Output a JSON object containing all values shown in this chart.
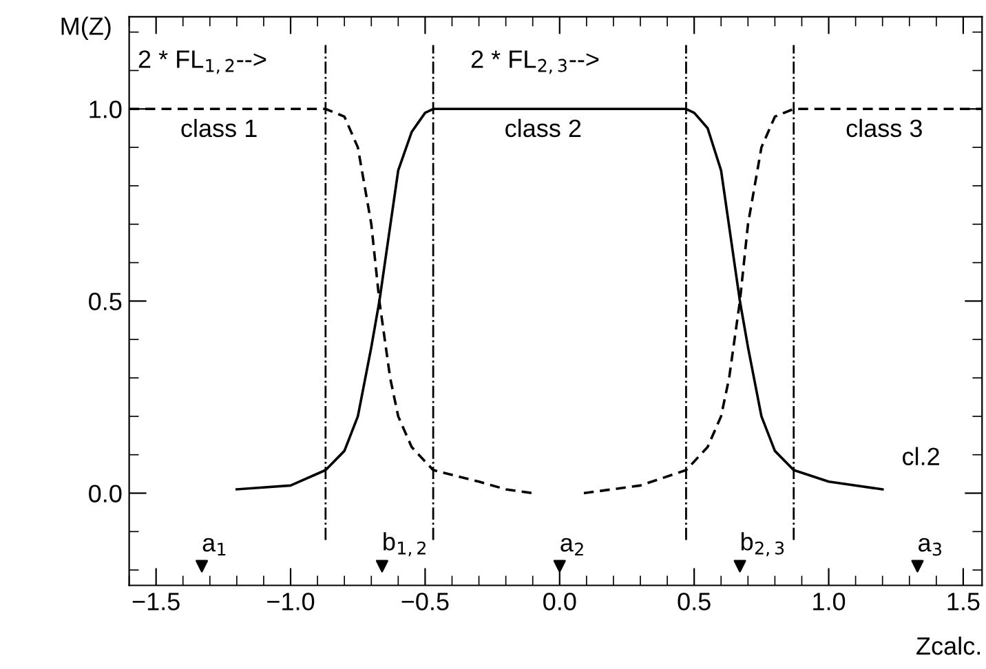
{
  "chart_data": {
    "type": "line",
    "xlabel": "Zcalc.",
    "ylabel": "M(Z)",
    "xlim": [
      -1.6,
      1.57
    ],
    "ylim": [
      -0.24,
      1.24
    ],
    "xticks": [
      {
        "value": -1.5,
        "label": "−1.5"
      },
      {
        "value": -1.0,
        "label": "−1.0"
      },
      {
        "value": -0.5,
        "label": "−0.5"
      },
      {
        "value": 0.0,
        "label": "0.0"
      },
      {
        "value": 0.5,
        "label": "0.5"
      },
      {
        "value": 1.0,
        "label": "1.0"
      },
      {
        "value": 1.5,
        "label": "1.5"
      }
    ],
    "yticks": [
      {
        "value": 0.0,
        "label": "0.0"
      },
      {
        "value": 0.5,
        "label": "0.5"
      },
      {
        "value": 1.0,
        "label": "1.0"
      }
    ],
    "grid": false,
    "series": [
      {
        "line_style": "dashed",
        "color": "#000000",
        "x": [
          -1.6,
          -0.87,
          -0.8,
          -0.75,
          -0.7,
          -0.67,
          -0.63,
          -0.6,
          -0.55,
          -0.47,
          -0.3,
          -0.2,
          -0.1
        ],
        "values": [
          1.0,
          1.0,
          0.98,
          0.9,
          0.7,
          0.5,
          0.3,
          0.2,
          0.12,
          0.06,
          0.03,
          0.01,
          0.0
        ]
      },
      {
        "line_style": "solid",
        "color": "#000000",
        "x": [
          -1.2,
          -1.0,
          -0.87,
          -0.8,
          -0.75,
          -0.7,
          -0.67,
          -0.6,
          -0.55,
          -0.5,
          -0.47,
          0.47,
          0.5,
          0.55,
          0.6,
          0.67,
          0.7,
          0.75,
          0.8,
          0.87,
          1.0,
          1.2
        ],
        "values": [
          0.01,
          0.02,
          0.06,
          0.11,
          0.2,
          0.38,
          0.5,
          0.84,
          0.94,
          0.99,
          1.0,
          1.0,
          0.99,
          0.95,
          0.84,
          0.5,
          0.38,
          0.2,
          0.11,
          0.06,
          0.03,
          0.01
        ]
      },
      {
        "line_style": "dashed",
        "color": "#000000",
        "x": [
          0.09,
          0.3,
          0.47,
          0.55,
          0.6,
          0.63,
          0.67,
          0.7,
          0.75,
          0.8,
          0.87,
          1.57
        ],
        "values": [
          0.0,
          0.02,
          0.06,
          0.12,
          0.2,
          0.3,
          0.5,
          0.7,
          0.9,
          0.98,
          1.0,
          1.0
        ]
      },
      {
        "type": "scatter",
        "marker": "triangle",
        "color": "#000000",
        "x": [
          -1.33,
          -0.66,
          0.0,
          0.67,
          1.33
        ],
        "values": [
          -0.19,
          -0.19,
          -0.19,
          -0.19,
          -0.19
        ]
      }
    ],
    "ref_lines": [
      {
        "axis": "x",
        "value": -0.87,
        "line_style": "dashdot"
      },
      {
        "axis": "x",
        "value": -0.47,
        "line_style": "dashdot"
      },
      {
        "axis": "x",
        "value": 0.47,
        "line_style": "dashdot"
      },
      {
        "axis": "x",
        "value": 0.87,
        "line_style": "dashdot"
      }
    ],
    "annotations": [
      "2 * FL$_{1,2}$-->",
      "2 * FL$_{2,3}$-->",
      "class 1",
      "class 2",
      "class 3",
      {
        "text": "cl.2",
        "x": 1.2,
        "y": 0.01
      },
      {
        "text": "a$_{1}$",
        "x": -1.33,
        "y": -0.19
      },
      {
        "text": "b$_{1,2}$",
        "x": -0.66,
        "y": -0.19
      },
      {
        "text": "a$_{2}$",
        "x": 0.0,
        "y": -0.19
      },
      {
        "text": "b$_{2,3}$",
        "x": 0.67,
        "y": -0.19
      },
      {
        "text": "a$_{3}$",
        "x": 1.33,
        "y": -0.19
      }
    ]
  }
}
